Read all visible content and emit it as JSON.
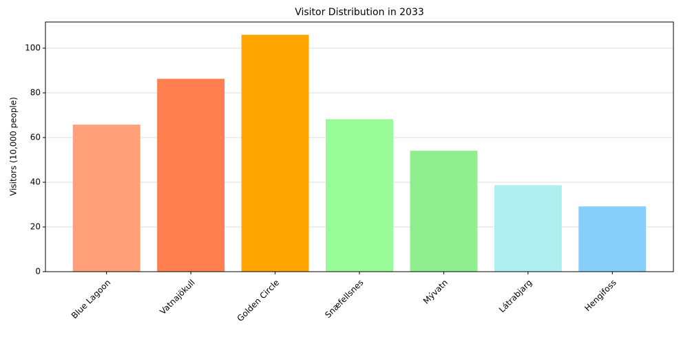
{
  "chart_data": {
    "type": "bar",
    "title": "Visitor Distribution in 2033",
    "y_label": "Visitors (10,000 people)",
    "categories": [
      "Blue Lagoon",
      "Vatnajökull",
      "Golden Circle",
      "Snæfellsnes",
      "Mývatn",
      "Látrabjarg",
      "Hengifoss"
    ],
    "values": [
      65.8,
      86.3,
      106,
      68.2,
      54.1,
      38.7,
      29.2
    ],
    "colors": [
      "#FFA07A",
      "#FF7F50",
      "#FFA500",
      "#98FB98",
      "#90EE90",
      "#AFEEEE",
      "#87CEFA"
    ],
    "ylim": [
      0,
      111.7
    ],
    "yticks": [
      0,
      20,
      40,
      60,
      80,
      100
    ],
    "grid": true
  }
}
